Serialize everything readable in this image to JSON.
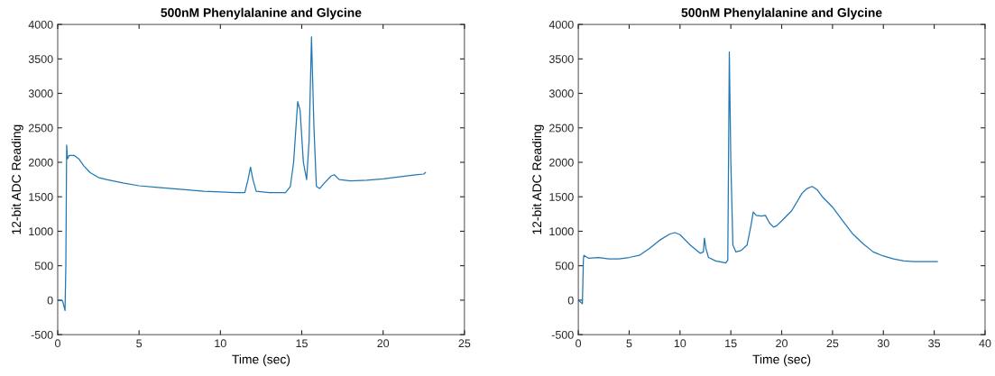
{
  "chart_data": [
    {
      "type": "line",
      "title": "500nM Phenylalanine and Glycine",
      "xlabel": "Time (sec)",
      "ylabel": "12-bit ADC Reading",
      "xlim": [
        0,
        25
      ],
      "xticks": [
        0,
        5,
        10,
        15,
        20,
        25
      ],
      "ylim": [
        -500,
        4000
      ],
      "yticks": [
        -500,
        0,
        500,
        1000,
        1500,
        2000,
        2500,
        3000,
        3500,
        4000
      ],
      "grid": false,
      "series": [
        {
          "color": "#1f77b4",
          "x": [
            0,
            0.3,
            0.45,
            0.5,
            0.55,
            0.6,
            0.7,
            1.0,
            1.3,
            1.6,
            2.0,
            2.5,
            3,
            4,
            5,
            6,
            7,
            8,
            9,
            10,
            11,
            11.5,
            11.7,
            11.85,
            12.0,
            12.2,
            13,
            14,
            14.3,
            14.5,
            14.75,
            14.9,
            15.1,
            15.3,
            15.45,
            15.6,
            15.75,
            15.9,
            16.1,
            16.4,
            16.8,
            17.0,
            17.3,
            18,
            19,
            20,
            21,
            22,
            22.5,
            22.6
          ],
          "values": [
            0,
            -10,
            -150,
            500,
            2250,
            2050,
            2100,
            2100,
            2050,
            1950,
            1850,
            1780,
            1750,
            1700,
            1660,
            1640,
            1620,
            1600,
            1580,
            1570,
            1560,
            1560,
            1750,
            1930,
            1750,
            1580,
            1560,
            1560,
            1650,
            2000,
            2880,
            2750,
            2000,
            1750,
            2300,
            3820,
            2500,
            1650,
            1620,
            1700,
            1800,
            1820,
            1750,
            1730,
            1740,
            1760,
            1790,
            1820,
            1830,
            1850
          ]
        }
      ]
    },
    {
      "type": "line",
      "title": "500nM Phenylalanine and Glycine",
      "xlabel": "Time (sec)",
      "ylabel": "12-bit ADC Reading",
      "xlim": [
        0,
        40
      ],
      "xticks": [
        0,
        5,
        10,
        15,
        20,
        25,
        30,
        35,
        40
      ],
      "ylim": [
        -500,
        4000
      ],
      "yticks": [
        -500,
        0,
        500,
        1000,
        1500,
        2000,
        2500,
        3000,
        3500,
        4000
      ],
      "grid": false,
      "series": [
        {
          "color": "#1f77b4",
          "x": [
            0,
            0.4,
            0.5,
            0.55,
            1,
            2,
            3,
            4,
            5,
            6,
            7,
            8,
            9,
            9.5,
            10,
            11,
            12,
            12.3,
            12.4,
            12.55,
            12.8,
            13.5,
            14.5,
            14.7,
            14.85,
            15.0,
            15.2,
            15.5,
            16,
            16.6,
            17.0,
            17.2,
            17.5,
            18,
            18.4,
            18.8,
            19.2,
            19.5,
            20,
            21,
            22,
            22.5,
            23,
            23.5,
            24,
            25,
            26,
            27,
            28,
            29,
            30,
            31,
            32,
            33,
            34,
            35,
            35.3
          ],
          "values": [
            0,
            -50,
            600,
            650,
            610,
            620,
            600,
            600,
            620,
            650,
            750,
            870,
            960,
            980,
            950,
            800,
            680,
            700,
            900,
            750,
            620,
            570,
            540,
            580,
            3600,
            2000,
            800,
            700,
            720,
            800,
            1100,
            1280,
            1230,
            1220,
            1230,
            1120,
            1060,
            1080,
            1150,
            1300,
            1550,
            1620,
            1650,
            1600,
            1500,
            1350,
            1150,
            960,
            820,
            700,
            640,
            600,
            570,
            560,
            560,
            560,
            560
          ]
        }
      ]
    }
  ]
}
